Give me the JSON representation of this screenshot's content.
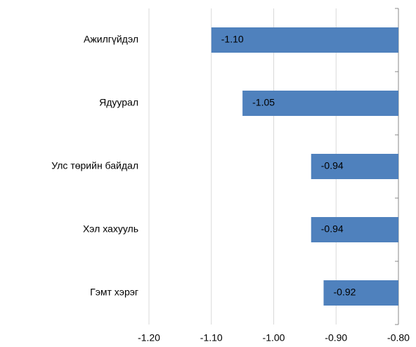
{
  "chart_data": {
    "type": "bar",
    "orientation": "horizontal",
    "categories": [
      "Ажилгүйдэл",
      "Ядуурал",
      "Улс төрийн байдал",
      "Хэл хахууль",
      "Гэмт хэрэг"
    ],
    "values": [
      -1.1,
      -1.05,
      -0.94,
      -0.94,
      -0.92
    ],
    "value_labels": [
      "-1.10",
      "-1.05",
      "-0.94",
      "-0.94",
      "-0.92"
    ],
    "color": "#4f81bd",
    "xlim": [
      -1.2,
      -0.8
    ],
    "xticks": [
      {
        "value": -1.2,
        "label": "-1.20"
      },
      {
        "value": -1.1,
        "label": "-1.10"
      },
      {
        "value": -1.0,
        "label": "-1.00"
      },
      {
        "value": -0.9,
        "label": "-0.90"
      },
      {
        "value": -0.8,
        "label": "-0.80"
      }
    ],
    "grid": true
  }
}
